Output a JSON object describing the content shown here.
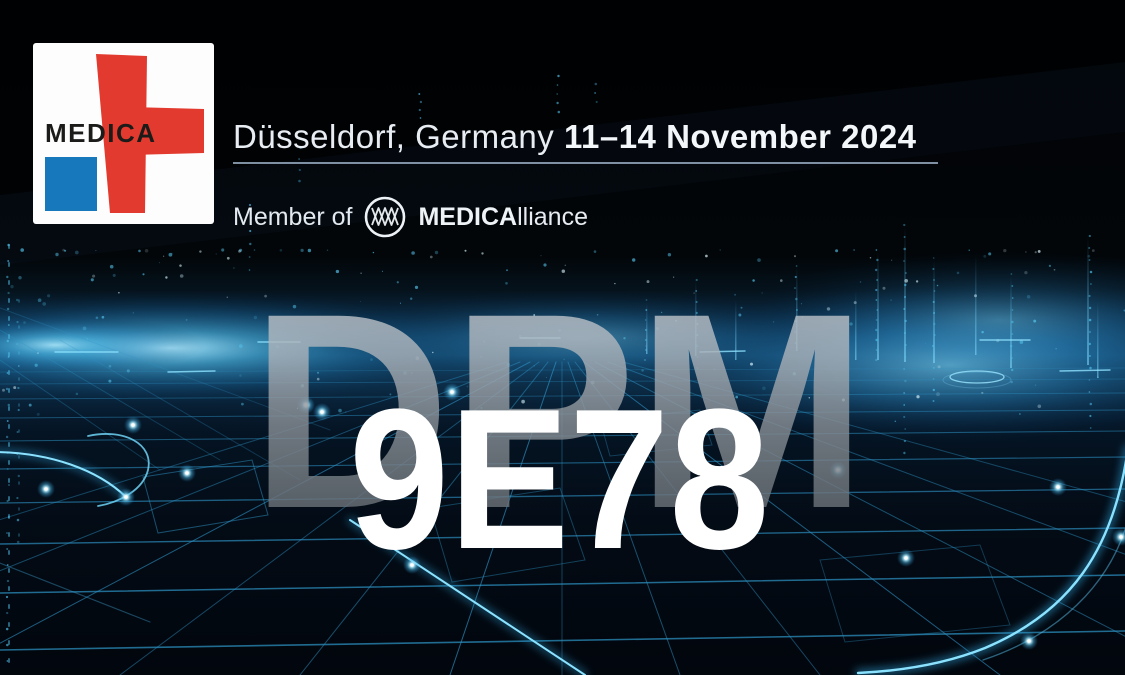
{
  "header": {
    "location": "Düsseldorf, Germany ",
    "dates": "11–14 November 2024",
    "member_prefix": "Member of",
    "alliance_bold": "MEDICA",
    "alliance_rest": "lliance"
  },
  "logo": {
    "wordmark": "MEDICA"
  },
  "main": {
    "watermark": "DPM",
    "code": "9E78"
  },
  "icons": {
    "logo_cross": "medica-cross-icon",
    "alliance_monogram": "medicalliance-monogram-icon"
  },
  "colors": {
    "brand_red": "#e23a2e",
    "brand_blue": "#1878bc",
    "accent_cyan": "#4fc0ea",
    "glow_core": "#bfeeff",
    "underline": "#a3b7d0",
    "watermark_top": "#ccd3d9",
    "watermark_bottom": "#5b6269",
    "background": "#01030a"
  }
}
